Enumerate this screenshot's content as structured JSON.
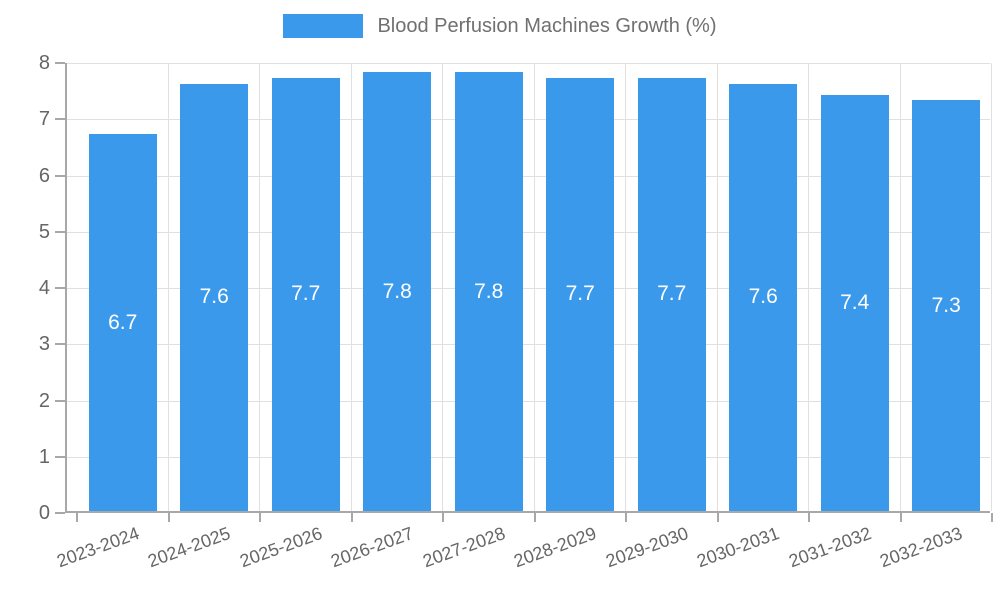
{
  "chart_data": {
    "type": "bar",
    "title": "Blood Perfusion Machines Growth (%)",
    "categories": [
      "2023-2024",
      "2024-2025",
      "2025-2026",
      "2026-2027",
      "2027-2028",
      "2028-2029",
      "2029-2030",
      "2030-2031",
      "2031-2032",
      "2032-2033"
    ],
    "values": [
      6.7,
      7.6,
      7.7,
      7.8,
      7.8,
      7.7,
      7.7,
      7.6,
      7.4,
      7.3
    ],
    "bar_value_labels": [
      "6.7",
      "7.6",
      "7.7",
      "7.8",
      "7.8",
      "7.7",
      "7.7",
      "7.6",
      "7.4",
      "7.3"
    ],
    "xlabel": "",
    "ylabel": "",
    "ylim": [
      0,
      8
    ],
    "yticks": [
      0,
      1,
      2,
      3,
      4,
      5,
      6,
      7,
      8
    ],
    "grid": true,
    "xtick_rotation_deg": -20,
    "legend_position": "top-center",
    "colors": {
      "bar": "#3b99ec",
      "bar_value_text": "#ffffff",
      "grid": "#e0e0e0",
      "axis": "#a8a8a8",
      "tick_text": "#666666",
      "legend_text": "#707070",
      "background": "#ffffff"
    }
  }
}
